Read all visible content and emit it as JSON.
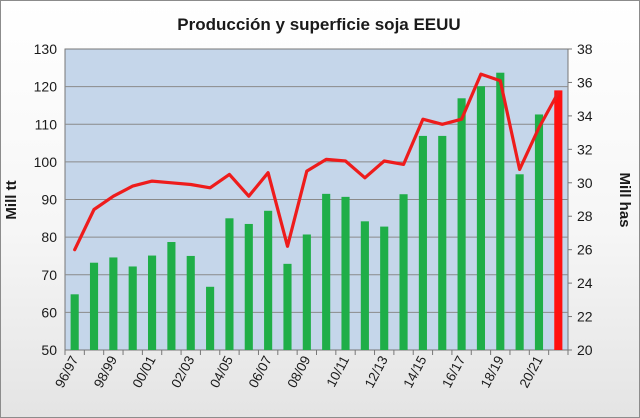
{
  "chart_data": {
    "type": "bar",
    "title": "Producción y superficie soja EEUU",
    "ylabel": "Mill tt",
    "y2label": "Mill has",
    "ylim": [
      50,
      130
    ],
    "y2lim": [
      20,
      38
    ],
    "y_ticks": [
      50,
      60,
      70,
      80,
      90,
      100,
      110,
      120,
      130
    ],
    "y2_ticks": [
      20,
      22,
      24,
      26,
      28,
      30,
      32,
      34,
      36,
      38
    ],
    "categories": [
      "96/97",
      "97/98",
      "98/99",
      "99/00",
      "00/01",
      "01/02",
      "02/03",
      "03/04",
      "04/05",
      "05/06",
      "06/07",
      "07/08",
      "08/09",
      "09/10",
      "10/11",
      "11/12",
      "12/13",
      "13/14",
      "14/15",
      "15/16",
      "16/17",
      "17/18",
      "18/19",
      "19/20",
      "20/21",
      "21/22"
    ],
    "x_tick_labels": [
      "96/97",
      "98/99",
      "00/01",
      "02/03",
      "04/05",
      "06/07",
      "08/09",
      "10/11",
      "12/13",
      "14/15",
      "16/17",
      "18/19",
      "20/21"
    ],
    "series": [
      {
        "name": "",
        "type": "bar",
        "axis": "left",
        "color": "#1fae48",
        "values": [
          64.8,
          73.2,
          74.6,
          72.2,
          75.1,
          78.7,
          75.0,
          66.8,
          85.0,
          83.5,
          87.0,
          72.9,
          80.7,
          91.5,
          90.7,
          84.2,
          82.8,
          91.4,
          106.9,
          106.9,
          116.9,
          120.1,
          123.7,
          96.7,
          112.6,
          119.0
        ]
      },
      {
        "name": "",
        "type": "line",
        "axis": "right",
        "color": "#ee1c1c",
        "values": [
          26.0,
          28.4,
          29.2,
          29.8,
          30.1,
          30.0,
          29.9,
          29.7,
          30.5,
          29.2,
          30.6,
          26.2,
          30.7,
          31.4,
          31.3,
          30.3,
          31.3,
          31.1,
          33.8,
          33.5,
          33.8,
          36.5,
          36.1,
          30.8,
          33.3,
          35.4
        ]
      }
    ],
    "highlight_bar": {
      "category": "21/22",
      "color": "#ff1010"
    },
    "plot_background": "#c5d6ea",
    "grid": true
  }
}
